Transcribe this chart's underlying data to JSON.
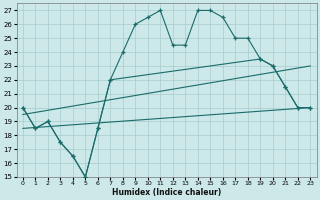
{
  "xlabel": "Humidex (Indice chaleur)",
  "xlim": [
    -0.5,
    23.5
  ],
  "ylim": [
    15,
    27.5
  ],
  "yticks": [
    15,
    16,
    17,
    18,
    19,
    20,
    21,
    22,
    23,
    24,
    25,
    26,
    27
  ],
  "xticks": [
    0,
    1,
    2,
    3,
    4,
    5,
    6,
    7,
    8,
    9,
    10,
    11,
    12,
    13,
    14,
    15,
    16,
    17,
    18,
    19,
    20,
    21,
    22,
    23
  ],
  "background_color": "#cce8e8",
  "line_color": "#1a6b6b",
  "grid_color": "#a8cccc",
  "line1_x": [
    0,
    1,
    2,
    3,
    4,
    5,
    6,
    7,
    8,
    9,
    10,
    11,
    12,
    13,
    14,
    15,
    16,
    17,
    18,
    19,
    20,
    21,
    22,
    23
  ],
  "line1_y": [
    20,
    18.5,
    19,
    17.5,
    16.5,
    15,
    18.5,
    22,
    24,
    26,
    26.5,
    27,
    24.5,
    24.5,
    27,
    27,
    26.5,
    25,
    25,
    23.5,
    23,
    21.5,
    20,
    20
  ],
  "line2_x": [
    0,
    1,
    2,
    3,
    4,
    5,
    6,
    7,
    19,
    20,
    21,
    22,
    23
  ],
  "line2_y": [
    20,
    18.5,
    19,
    17.5,
    16.5,
    15,
    18.5,
    22,
    23.5,
    23,
    21.5,
    20,
    20
  ],
  "line3_x": [
    0,
    23
  ],
  "line3_y": [
    19.5,
    23
  ],
  "line4_x": [
    0,
    23
  ],
  "line4_y": [
    18.5,
    20
  ]
}
